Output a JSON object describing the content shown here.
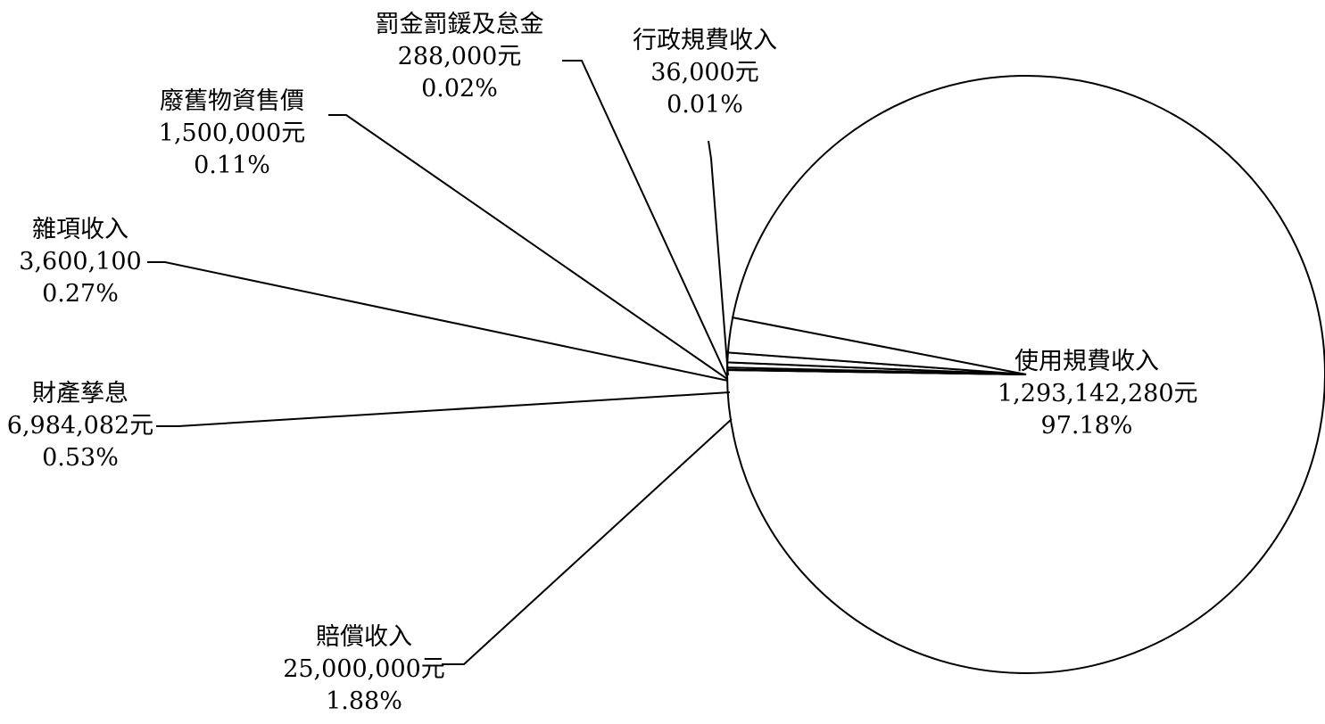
{
  "chart_data": {
    "type": "pie",
    "title": "",
    "slices": [
      {
        "name": "使用規費收入",
        "amount": "1,293,142,280元",
        "percent_label": "97.18%",
        "value": 1293142280
      },
      {
        "name": "賠償收入",
        "amount": "25,000,000元",
        "percent_label": "1.88%",
        "value": 25000000
      },
      {
        "name": "財產孳息",
        "amount": "6,984,082元",
        "percent_label": "0.53%",
        "value": 6984082
      },
      {
        "name": "雜項收入",
        "amount": "3,600,100",
        "percent_label": "0.27%",
        "value": 3600100
      },
      {
        "name": "廢舊物資售價",
        "amount": "1,500,000元",
        "percent_label": "0.11%",
        "value": 1500000
      },
      {
        "name": "罰金罰鍰及怠金",
        "amount": "288,000元",
        "percent_label": "0.02%",
        "value": 288000
      },
      {
        "name": "行政規費收入",
        "amount": "36,000元",
        "percent_label": "0.01%",
        "value": 36000
      }
    ],
    "legend": "none",
    "colors": {
      "stroke": "#000000",
      "fill": "#ffffff",
      "text": "#000000"
    }
  }
}
